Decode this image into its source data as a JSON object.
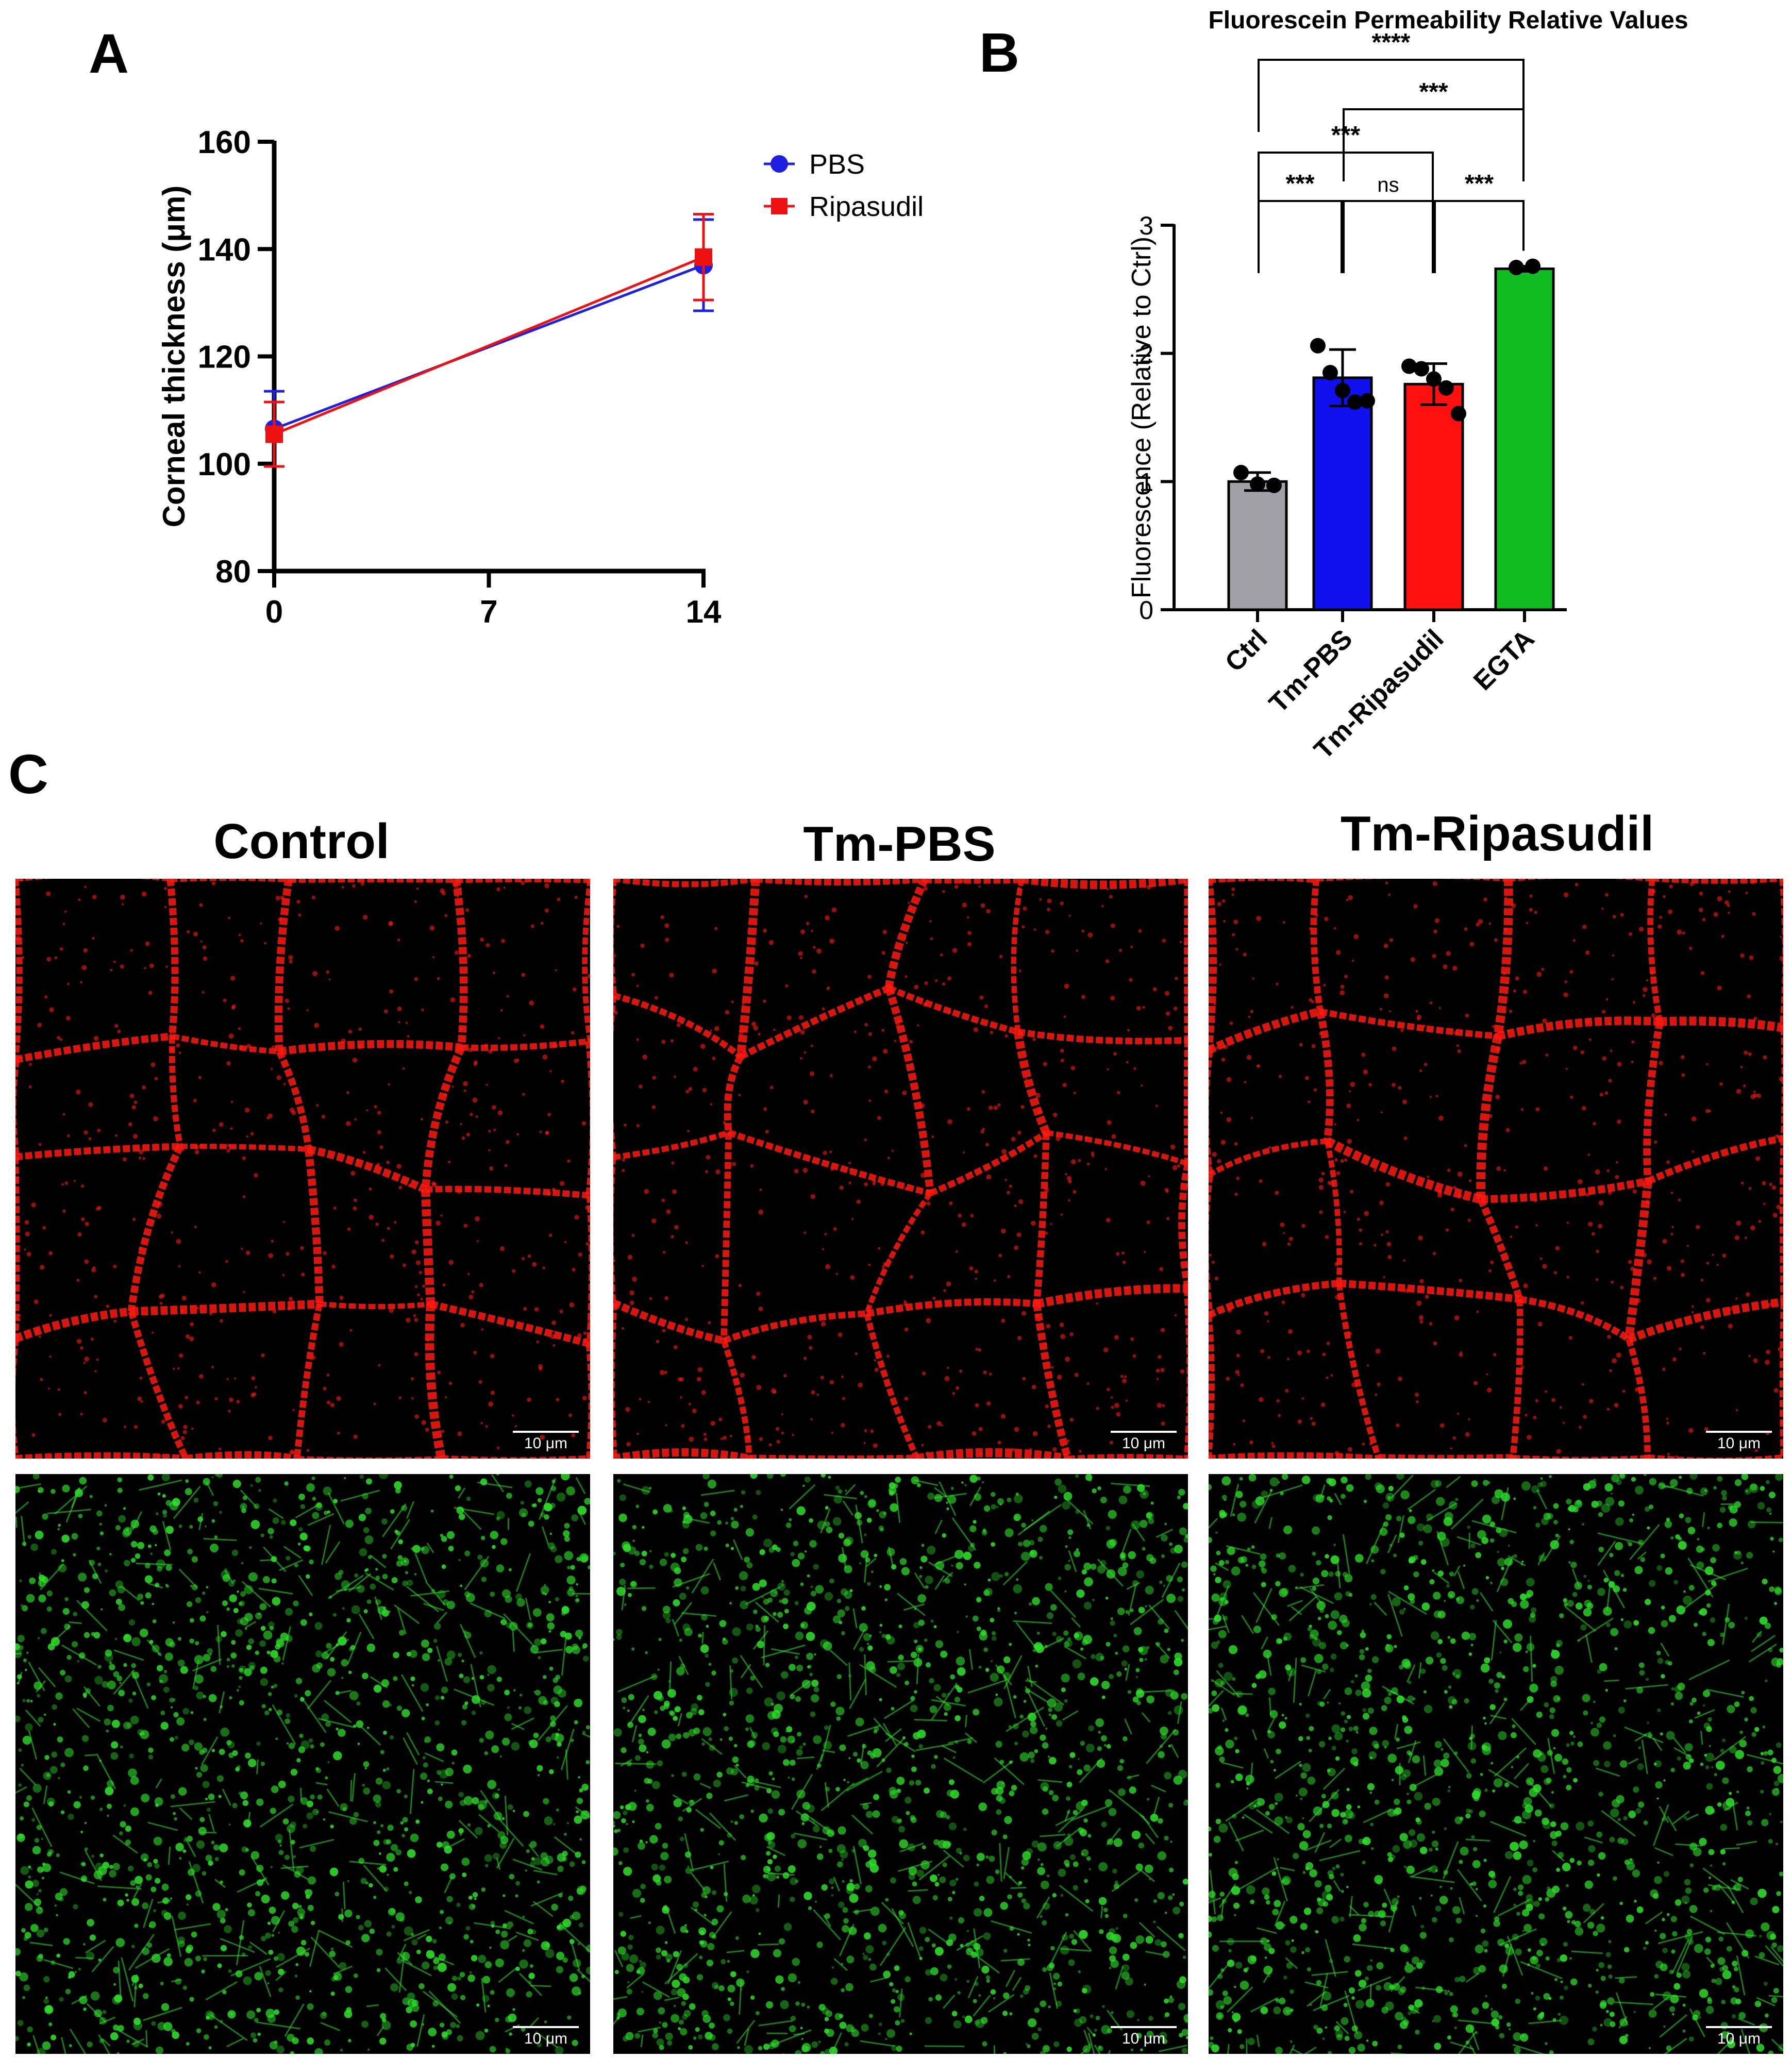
{
  "panels": {
    "a": "A",
    "b": "B",
    "c": "C"
  },
  "chart_data": [
    {
      "type": "line",
      "ylabel": "Corneal thickness (μm)",
      "xlabel": "",
      "xlim": [
        0,
        14
      ],
      "ylim": [
        80,
        160
      ],
      "xticks": [
        0,
        7,
        14
      ],
      "yticks": [
        80,
        100,
        120,
        140,
        160
      ],
      "grid": false,
      "legend": "top-right",
      "series": [
        {
          "name": "PBS",
          "color": "#1f1fe0",
          "marker": "circle",
          "x": [
            0,
            14
          ],
          "y": [
            106.5,
            137.0
          ],
          "err": [
            7.0,
            8.5
          ]
        },
        {
          "name": "Ripasudil",
          "color": "#ee1111",
          "marker": "square",
          "x": [
            0,
            14
          ],
          "y": [
            105.5,
            138.5
          ],
          "err": [
            6.0,
            8.0
          ]
        }
      ]
    },
    {
      "type": "bar",
      "title": "Fluorescein Permeability Relative Values",
      "ylabel": "Fluorescence (Relative to Ctrl)",
      "xlabel": "",
      "ylim": [
        0,
        3
      ],
      "yticks": [
        0,
        1,
        2,
        3
      ],
      "grid": false,
      "categories": [
        "Ctrl",
        "Tm-PBS",
        "Tm-Ripasudil",
        "EGTA"
      ],
      "values": [
        1.0,
        1.81,
        1.76,
        2.66
      ],
      "errors": [
        0.07,
        0.22,
        0.16,
        0.02
      ],
      "colors": [
        "#a0a0a6",
        "#1010ee",
        "#ff1010",
        "#11bb22"
      ],
      "points": [
        [
          1.07,
          0.98,
          0.97
        ],
        [
          2.06,
          1.85,
          1.71,
          1.62,
          1.63
        ],
        [
          1.9,
          1.88,
          1.8,
          1.73,
          1.53
        ],
        [
          2.67,
          2.68
        ]
      ],
      "significance": [
        {
          "from": 0,
          "to": 1,
          "label": "***"
        },
        {
          "from": 1,
          "to": 2,
          "label": "ns"
        },
        {
          "from": 2,
          "to": 3,
          "label": "***"
        },
        {
          "from": 0,
          "to": 2,
          "label": "***"
        },
        {
          "from": 1,
          "to": 3,
          "label": "***"
        },
        {
          "from": 0,
          "to": 3,
          "label": "****"
        }
      ]
    }
  ],
  "micrographs": {
    "columns": [
      "Control",
      "Tm-PBS",
      "Tm-Ripasudil"
    ],
    "scale_bar": "10 μm",
    "rows": [
      {
        "stain": "red",
        "color": "#ff1a10"
      },
      {
        "stain": "green",
        "color": "#2ee02a"
      }
    ]
  }
}
